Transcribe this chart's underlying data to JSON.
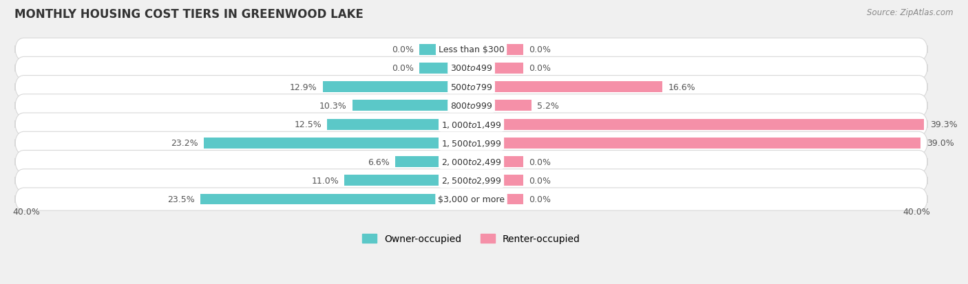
{
  "title": "MONTHLY HOUSING COST TIERS IN GREENWOOD LAKE",
  "source": "Source: ZipAtlas.com",
  "categories": [
    "Less than $300",
    "$300 to $499",
    "$500 to $799",
    "$800 to $999",
    "$1,000 to $1,499",
    "$1,500 to $1,999",
    "$2,000 to $2,499",
    "$2,500 to $2,999",
    "$3,000 or more"
  ],
  "owner_values": [
    0.0,
    0.0,
    12.9,
    10.3,
    12.5,
    23.2,
    6.6,
    11.0,
    23.5
  ],
  "renter_values": [
    0.0,
    0.0,
    16.6,
    5.2,
    39.3,
    39.0,
    0.0,
    0.0,
    0.0
  ],
  "owner_color": "#5BC8C8",
  "renter_color": "#F590A8",
  "owner_label": "Owner-occupied",
  "renter_label": "Renter-occupied",
  "xlim": 40.0,
  "zero_bar_size": 4.5,
  "background_color": "#f0f0f0",
  "row_bg_color": "#ffffff",
  "row_edge_color": "#d8d8d8",
  "title_fontsize": 12,
  "source_fontsize": 8.5,
  "value_fontsize": 9,
  "category_fontsize": 9,
  "legend_fontsize": 10,
  "bar_height": 0.58,
  "text_color": "#555555"
}
